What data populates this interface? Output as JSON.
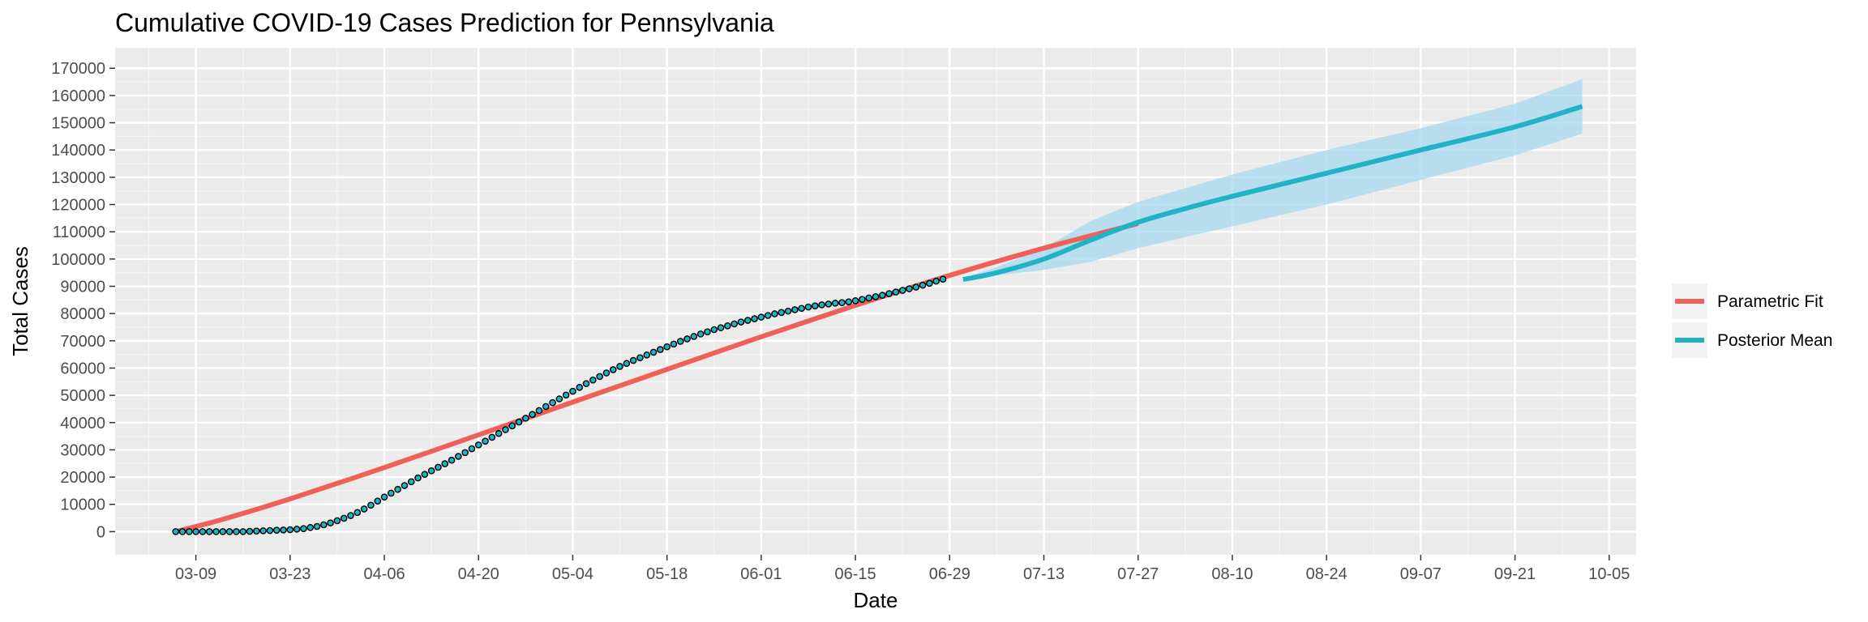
{
  "chart_data": {
    "type": "line",
    "title": "Cumulative COVID-19 Cases Prediction for Pennsylvania",
    "xlabel": "Date",
    "ylabel": "Total Cases",
    "x_axis": {
      "type": "date",
      "range": [
        "2020-02-26",
        "2020-10-09"
      ],
      "ticks": [
        "2020-03-09",
        "2020-03-23",
        "2020-04-06",
        "2020-04-20",
        "2020-05-04",
        "2020-05-18",
        "2020-06-01",
        "2020-06-15",
        "2020-06-29",
        "2020-07-13",
        "2020-07-27",
        "2020-08-10",
        "2020-08-24",
        "2020-09-07",
        "2020-09-21",
        "2020-10-05"
      ],
      "tick_labels": [
        "03-09",
        "03-23",
        "04-06",
        "04-20",
        "05-04",
        "05-18",
        "06-01",
        "06-15",
        "06-29",
        "07-13",
        "07-27",
        "08-10",
        "08-24",
        "09-07",
        "09-21",
        "10-05"
      ]
    },
    "y_axis": {
      "range": [
        -8500,
        177500
      ],
      "ticks": [
        0,
        10000,
        20000,
        30000,
        40000,
        50000,
        60000,
        70000,
        80000,
        90000,
        100000,
        110000,
        120000,
        130000,
        140000,
        150000,
        160000,
        170000
      ]
    },
    "grid": true,
    "legend": {
      "position": "right",
      "entries": [
        {
          "label": "Parametric Fit",
          "color": "#f0605a"
        },
        {
          "label": "Posterior Mean",
          "color": "#20b3c6"
        }
      ]
    },
    "series": [
      {
        "name": "Parametric Fit",
        "kind": "line",
        "color": "#f0605a",
        "points": [
          [
            "2020-03-06",
            0
          ],
          [
            "2020-03-13",
            4500
          ],
          [
            "2020-03-23",
            12000
          ],
          [
            "2020-04-06",
            23500
          ],
          [
            "2020-04-20",
            35500
          ],
          [
            "2020-05-04",
            47500
          ],
          [
            "2020-05-18",
            59500
          ],
          [
            "2020-06-01",
            71500
          ],
          [
            "2020-06-15",
            83000
          ],
          [
            "2020-06-29",
            94000
          ],
          [
            "2020-07-13",
            104000
          ],
          [
            "2020-07-27",
            113000
          ]
        ]
      },
      {
        "name": "Posterior Mean",
        "kind": "line",
        "color": "#20b3c6",
        "points": [
          [
            "2020-07-01",
            92500
          ],
          [
            "2020-07-06",
            95000
          ],
          [
            "2020-07-13",
            100000
          ],
          [
            "2020-07-20",
            107000
          ],
          [
            "2020-07-27",
            113500
          ],
          [
            "2020-08-03",
            118500
          ],
          [
            "2020-08-10",
            123000
          ],
          [
            "2020-08-24",
            131500
          ],
          [
            "2020-09-07",
            140000
          ],
          [
            "2020-09-21",
            148500
          ],
          [
            "2020-10-01",
            156000
          ]
        ]
      },
      {
        "name": "Credible Band",
        "kind": "ribbon",
        "color": "#a6d8ef",
        "points": [
          [
            "2020-07-01",
            92000,
            93000
          ],
          [
            "2020-07-06",
            94000,
            97000
          ],
          [
            "2020-07-13",
            96000,
            104000
          ],
          [
            "2020-07-20",
            99000,
            114000
          ],
          [
            "2020-07-27",
            104000,
            121000
          ],
          [
            "2020-08-10",
            112000,
            131000
          ],
          [
            "2020-08-24",
            120000,
            140000
          ],
          [
            "2020-09-07",
            129000,
            148000
          ],
          [
            "2020-09-21",
            138000,
            157000
          ],
          [
            "2020-10-01",
            146000,
            166000
          ]
        ]
      },
      {
        "name": "Observed",
        "kind": "points",
        "start_date": "2020-03-06",
        "values": [
          0,
          0,
          0,
          0,
          0,
          0,
          0,
          0,
          0,
          0,
          0,
          100,
          200,
          300,
          400,
          500,
          600,
          700,
          900,
          1100,
          1500,
          1900,
          2500,
          3200,
          4000,
          4900,
          5900,
          7000,
          8300,
          9700,
          11200,
          12700,
          14100,
          15500,
          16900,
          18300,
          19700,
          21000,
          22300,
          23600,
          24900,
          26200,
          27600,
          29000,
          30400,
          31800,
          33200,
          34600,
          36000,
          37400,
          38800,
          40200,
          41600,
          43000,
          44400,
          45900,
          47300,
          48700,
          50100,
          51500,
          52900,
          54300,
          55600,
          56900,
          58200,
          59400,
          60600,
          61700,
          62800,
          63800,
          64800,
          65800,
          66800,
          67800,
          68800,
          69800,
          70700,
          71600,
          72500,
          73300,
          74100,
          74800,
          75500,
          76200,
          76900,
          77500,
          78100,
          78700,
          79300,
          79900,
          80400,
          80900,
          81400,
          81900,
          82400,
          82800,
          83200,
          83500,
          83800,
          84000,
          84300,
          84700,
          85200,
          85700,
          86200,
          86700,
          87300,
          87900,
          88500,
          89100,
          89700,
          90400,
          91100,
          91900,
          92600
        ]
      }
    ]
  }
}
